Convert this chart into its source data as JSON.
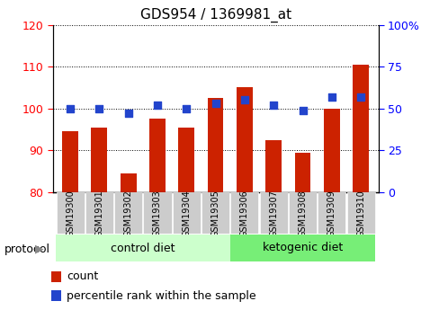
{
  "title": "GDS954 / 1369981_at",
  "samples": [
    "GSM19300",
    "GSM19301",
    "GSM19302",
    "GSM19303",
    "GSM19304",
    "GSM19305",
    "GSM19306",
    "GSM19307",
    "GSM19308",
    "GSM19309",
    "GSM19310"
  ],
  "counts": [
    94.5,
    95.5,
    84.5,
    97.5,
    95.5,
    102.5,
    105.0,
    92.5,
    89.5,
    100.0,
    110.5
  ],
  "percentile_ranks": [
    50,
    50,
    47,
    52,
    50,
    53,
    55,
    52,
    49,
    57,
    57
  ],
  "ylim_left": [
    80,
    120
  ],
  "ylim_right": [
    0,
    100
  ],
  "yticks_left": [
    80,
    90,
    100,
    110,
    120
  ],
  "yticks_right": [
    0,
    25,
    50,
    75,
    100
  ],
  "ytick_labels_right": [
    "0",
    "25",
    "50",
    "75",
    "100%"
  ],
  "bar_color": "#cc2200",
  "dot_color": "#2244cc",
  "control_group": [
    0,
    1,
    2,
    3,
    4,
    5
  ],
  "ketogenic_group": [
    6,
    7,
    8,
    9,
    10
  ],
  "control_label": "control diet",
  "ketogenic_label": "ketogenic diet",
  "protocol_label": "protocol",
  "legend_count": "count",
  "legend_pct": "percentile rank within the sample",
  "background_color": "#ffffff",
  "plot_bg": "#ffffff",
  "group_bg_control": "#ccffcc",
  "group_bg_keto": "#77ee77",
  "bar_bottom": 80,
  "tick_bg": "#cccccc",
  "bar_width": 0.55
}
